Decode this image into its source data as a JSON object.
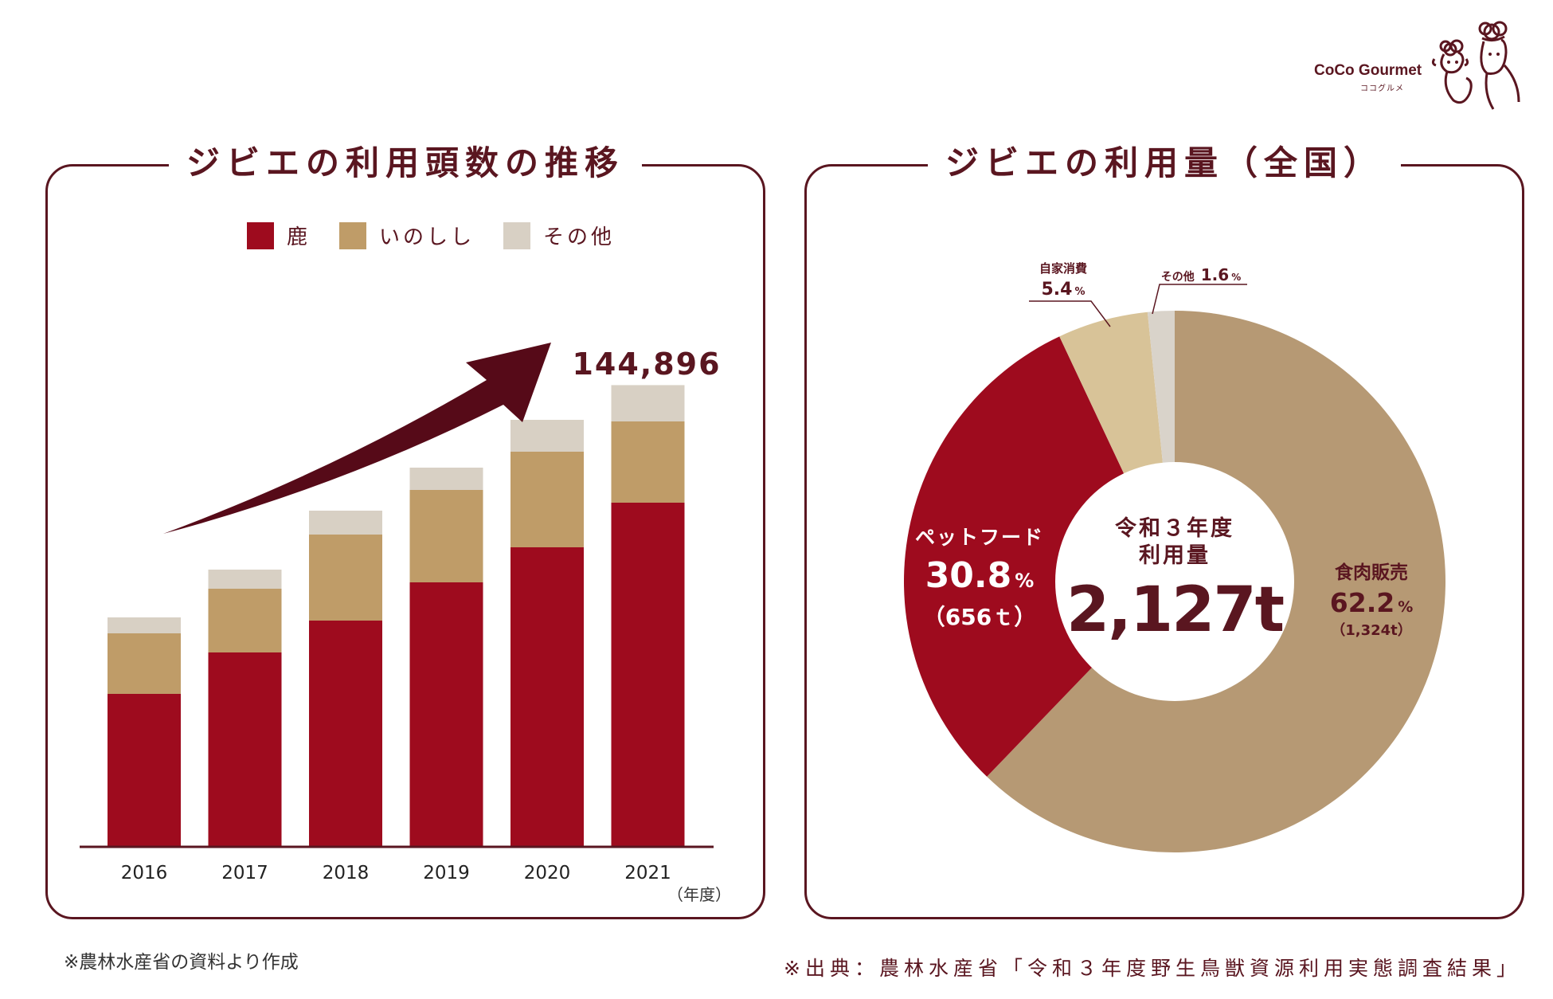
{
  "logo": {
    "name": "CoCo Gourmet",
    "sub": "ココグルメ"
  },
  "left_title": "ジビエの利用頭数の推移",
  "right_title": "ジビエの利用量（全国）",
  "colors": {
    "deer": "#9e0b1e",
    "boar": "#bf9c68",
    "other": "#d8d0c4",
    "dark": "#5a1620",
    "arrow": "#560a18",
    "meat": "#b69974",
    "pet": "#9e0b1e",
    "home": "#d8c398",
    "misc": "#d9d3ca"
  },
  "chart_data": [
    {
      "type": "bar",
      "stacked": true,
      "title": "ジビエの利用頭数の推移",
      "categories": [
        "2016",
        "2017",
        "2018",
        "2019",
        "2020",
        "2021"
      ],
      "series": [
        {
          "name": "鹿",
          "values": [
            48000,
            61000,
            71000,
            83000,
            94000,
            108000
          ]
        },
        {
          "name": "いのしし",
          "values": [
            19000,
            20000,
            27000,
            29000,
            30000,
            25500
          ]
        },
        {
          "name": "その他",
          "values": [
            5000,
            6000,
            7500,
            7000,
            10000,
            11396
          ]
        }
      ],
      "ylim": [
        0,
        165000
      ],
      "total_label": "144,896",
      "xlabel": "（年度）",
      "trend_arrow": true
    },
    {
      "type": "pie",
      "donut": true,
      "title": "ジビエの利用量（全国）",
      "center_line1": "令和３年度",
      "center_line2": "利用量",
      "center_value": "2,127t",
      "slices": [
        {
          "label": "食肉販売",
          "value": 62.2,
          "pct": "62.2",
          "amount": "（1,324t）"
        },
        {
          "label": "ペットフード",
          "value": 30.8,
          "pct": "30.8",
          "amount": "（656ｔ）"
        },
        {
          "label": "自家消費",
          "value": 5.4,
          "pct": "5.4"
        },
        {
          "label": "その他",
          "value": 1.6,
          "pct": "1.6"
        }
      ],
      "pct_unit": "%"
    }
  ],
  "footnote_left": "※農林水産省の資料より作成",
  "footnote_right": "※出典：農林水産省「令和３年度野生鳥獣資源利用実態調査結果」"
}
